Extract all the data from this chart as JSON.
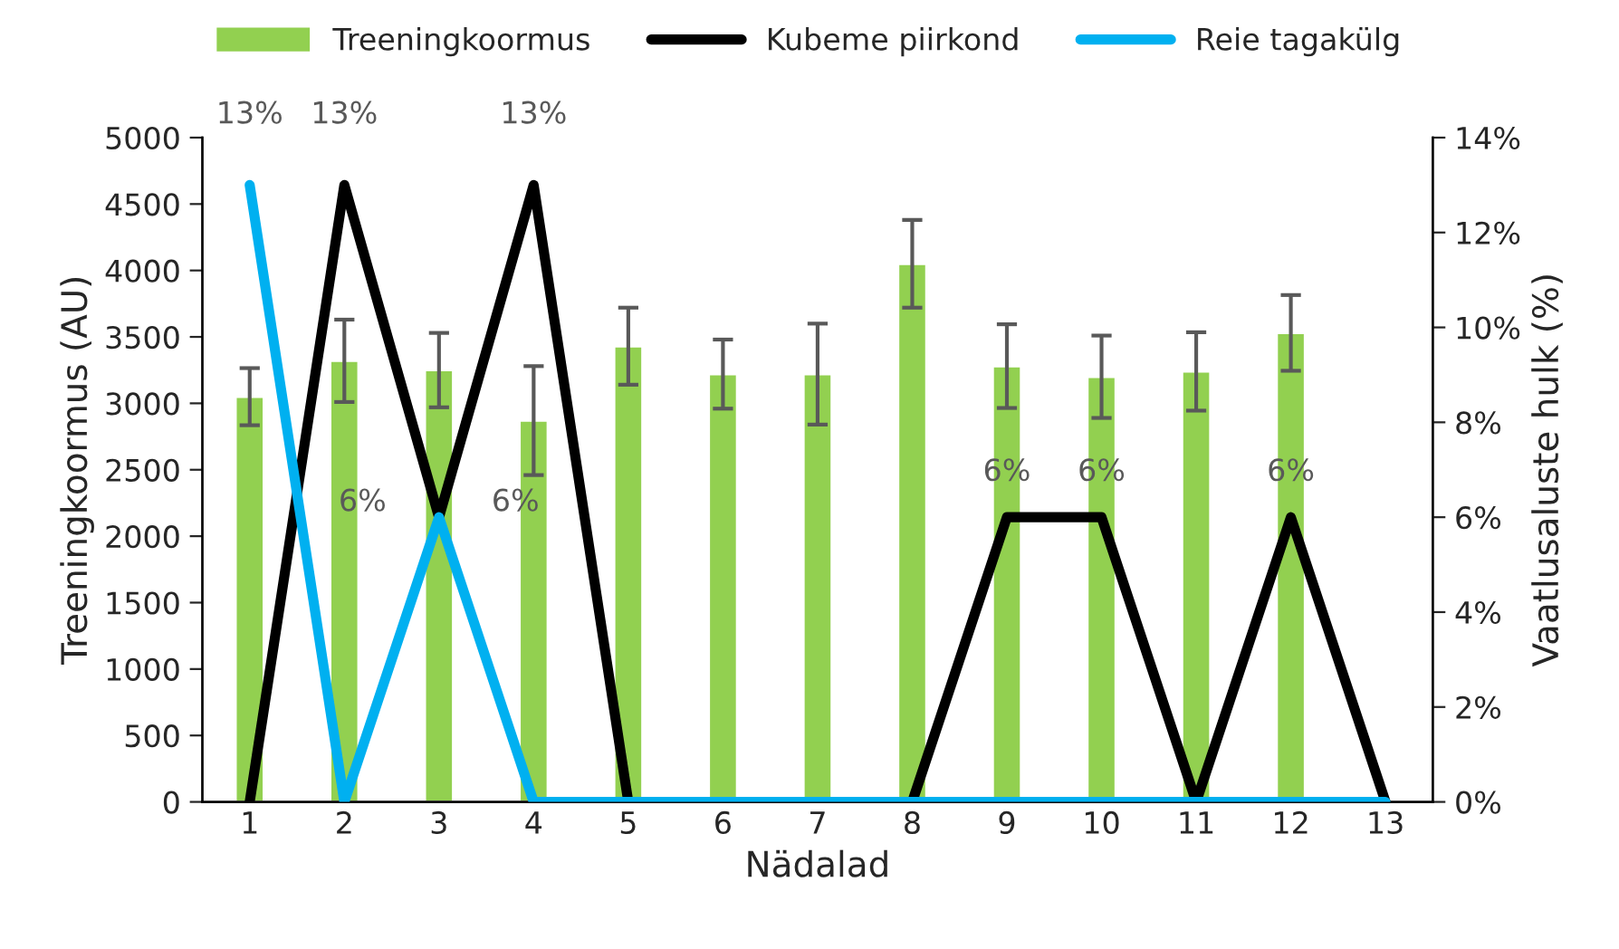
{
  "chart_data": {
    "type": "bar",
    "xlabel": "Nädalad",
    "ylabel": "Treeningkoormus (AU)",
    "y2label": "Vaatlusaluste hulk (%)",
    "categories": [
      "1",
      "2",
      "3",
      "4",
      "5",
      "6",
      "7",
      "8",
      "9",
      "10",
      "11",
      "12",
      "13"
    ],
    "series": [
      {
        "name": "Treeningkoormus",
        "color": "#92d050",
        "values": [
          3050,
          3320,
          3250,
          2870,
          3430,
          3220,
          3220,
          4050,
          3280,
          3200,
          3240,
          3530,
          null
        ],
        "errors": [
          215,
          310,
          280,
          410,
          290,
          260,
          380,
          330,
          315,
          310,
          295,
          285,
          null
        ]
      },
      {
        "name": "Kubeme piirkond",
        "type": "line",
        "axis": "y2",
        "color": "#000000",
        "values": [
          0,
          13,
          6,
          13,
          0,
          0,
          0,
          0,
          6,
          6,
          0,
          6,
          0
        ],
        "value_labels": [
          null,
          "13%",
          "6%",
          "13%",
          null,
          null,
          null,
          null,
          "6%",
          "6%",
          null,
          "6%",
          null
        ]
      },
      {
        "name": "Reie tagakülg",
        "type": "line",
        "axis": "y2",
        "color": "#00b0f0",
        "values": [
          13,
          0,
          6,
          0,
          0,
          0,
          0,
          0,
          0,
          0,
          0,
          0,
          0
        ],
        "value_labels": [
          "13%",
          null,
          "6%",
          null,
          null,
          null,
          null,
          null,
          null,
          null,
          null,
          null,
          null
        ]
      }
    ],
    "ylim": [
      0,
      5000
    ],
    "yticks": [
      0,
      500,
      1000,
      1500,
      2000,
      2500,
      3000,
      3500,
      4000,
      4500,
      5000
    ],
    "y2lim": [
      0,
      14
    ],
    "y2ticks": [
      {
        "value": 0,
        "label": "0%"
      },
      {
        "value": 2,
        "label": "2%"
      },
      {
        "value": 4,
        "label": "4%"
      },
      {
        "value": 6,
        "label": "6%"
      },
      {
        "value": 8,
        "label": "8%"
      },
      {
        "value": 10,
        "label": "10%"
      },
      {
        "value": 12,
        "label": "12%"
      },
      {
        "value": 14,
        "label": "14%"
      }
    ],
    "legend": "top",
    "grid": false,
    "line_style": "solid",
    "marker": "none"
  }
}
